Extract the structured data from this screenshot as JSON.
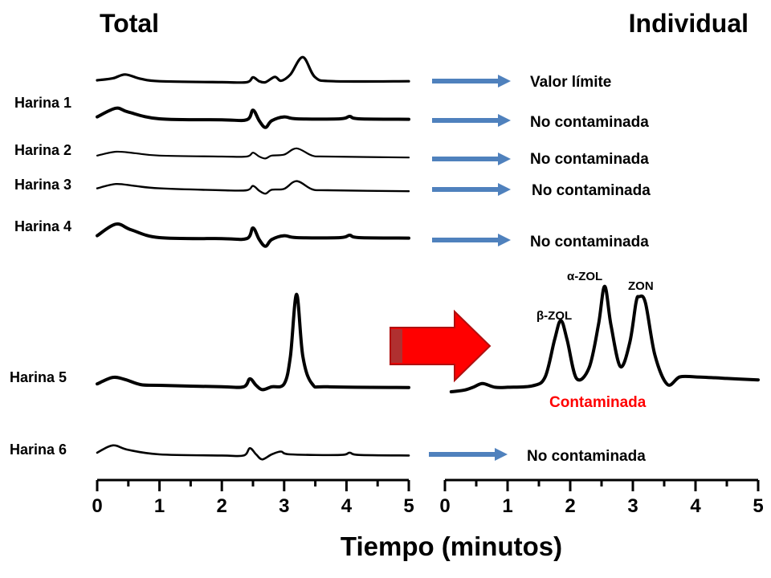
{
  "panels": {
    "left_title": "Total",
    "right_title": "Individual"
  },
  "x_axis": {
    "label": "Tiempo (minutos)",
    "ticks": [
      "0",
      "1",
      "2",
      "3",
      "4",
      "5"
    ]
  },
  "samples": [
    {
      "label": "",
      "result": "Valor límite"
    },
    {
      "label": "Harina 1",
      "result": "No contaminada"
    },
    {
      "label": "Harina 2",
      "result": "No contaminada"
    },
    {
      "label": "Harina 3",
      "result": "No contaminada"
    },
    {
      "label": "Harina 4",
      "result": "No contaminada"
    },
    {
      "label": "Harina 5",
      "result": "Contaminada"
    },
    {
      "label": "Harina 6",
      "result": "No contaminada"
    }
  ],
  "peaks": [
    "β-ZOL",
    "α-ZOL",
    "ZON"
  ],
  "colors": {
    "arrow": "#4f81bd",
    "big_arrow": "#ff0000",
    "contaminated_text": "#ff0000",
    "trace": "#000000"
  },
  "chart_data": [
    {
      "type": "line",
      "title": "Total",
      "xlabel": "Tiempo (minutos)",
      "xlim": [
        0,
        5
      ],
      "series": [
        {
          "name": "",
          "x": [
            0,
            0.25,
            0.45,
            0.7,
            1.0,
            2.0,
            2.4,
            2.5,
            2.6,
            2.7,
            2.85,
            2.95,
            3.1,
            3.3,
            3.5,
            3.8,
            5.0
          ],
          "values": [
            0.0,
            0.2,
            0.6,
            0.15,
            -0.1,
            -0.2,
            -0.2,
            0.3,
            -0.1,
            -0.2,
            0.35,
            -0.05,
            0.6,
            2.4,
            0.3,
            -0.1,
            -0.1
          ]
        },
        {
          "name": "Harina 1",
          "x": [
            0,
            0.3,
            0.5,
            1.0,
            2.0,
            2.4,
            2.5,
            2.6,
            2.7,
            2.8,
            3.0,
            3.2,
            3.9,
            4.05,
            4.2,
            5.0
          ],
          "values": [
            0.2,
            1.1,
            0.7,
            0.0,
            -0.1,
            -0.1,
            0.9,
            -0.2,
            -0.9,
            -0.2,
            0.2,
            0.0,
            0.0,
            0.25,
            0.0,
            -0.05
          ]
        },
        {
          "name": "Harina 2",
          "x": [
            0,
            0.3,
            0.6,
            1.0,
            2.0,
            2.4,
            2.5,
            2.6,
            2.7,
            2.8,
            3.0,
            3.2,
            3.45,
            3.7,
            5.0
          ],
          "values": [
            0.1,
            0.5,
            0.35,
            0.1,
            0.0,
            0.0,
            0.4,
            0.0,
            -0.2,
            0.1,
            0.2,
            0.85,
            0.1,
            0.0,
            -0.1
          ]
        },
        {
          "name": "Harina 3",
          "x": [
            0,
            0.3,
            0.6,
            1.0,
            2.0,
            2.4,
            2.5,
            2.6,
            2.7,
            2.8,
            3.0,
            3.2,
            3.45,
            3.7,
            5.0
          ],
          "values": [
            0.2,
            0.65,
            0.45,
            0.2,
            0.0,
            0.0,
            0.45,
            -0.05,
            -0.35,
            0.05,
            0.15,
            0.95,
            0.1,
            0.0,
            -0.1
          ]
        },
        {
          "name": "Harina 4",
          "x": [
            0,
            0.3,
            0.55,
            1.0,
            2.0,
            2.4,
            2.5,
            2.6,
            2.7,
            2.8,
            3.0,
            3.2,
            3.9,
            4.05,
            4.2,
            5.0
          ],
          "values": [
            0.2,
            1.4,
            0.8,
            0.0,
            -0.1,
            -0.1,
            1.0,
            -0.2,
            -0.9,
            -0.2,
            0.2,
            0.0,
            0.0,
            0.25,
            0.0,
            -0.05
          ]
        },
        {
          "name": "Harina 5",
          "x": [
            0,
            0.25,
            0.45,
            0.7,
            1.0,
            2.0,
            2.35,
            2.45,
            2.55,
            2.65,
            2.8,
            3.0,
            3.1,
            3.2,
            3.3,
            3.45,
            3.7,
            5.0
          ],
          "values": [
            0.1,
            0.55,
            0.4,
            0.05,
            0.0,
            -0.1,
            -0.1,
            0.45,
            0.0,
            -0.3,
            -0.1,
            0.1,
            2.0,
            6.3,
            2.0,
            0.1,
            -0.1,
            -0.15
          ]
        },
        {
          "name": "Harina 6",
          "x": [
            0,
            0.25,
            0.5,
            1.0,
            2.0,
            2.35,
            2.45,
            2.55,
            2.65,
            2.8,
            2.95,
            3.1,
            3.9,
            4.05,
            4.2,
            5.0
          ],
          "values": [
            0.15,
            0.8,
            0.4,
            0.0,
            -0.1,
            -0.1,
            0.55,
            0.0,
            -0.45,
            0.0,
            0.25,
            0.0,
            -0.05,
            0.15,
            -0.05,
            -0.1
          ]
        }
      ]
    },
    {
      "type": "line",
      "title": "Individual",
      "xlabel": "Tiempo (minutos)",
      "xlim": [
        0,
        5
      ],
      "series": [
        {
          "name": "",
          "x": [
            0.1,
            0.3,
            0.45,
            0.6,
            0.8,
            1.0,
            1.4,
            1.6,
            1.75,
            1.85,
            1.95,
            2.1,
            2.3,
            2.45,
            2.55,
            2.65,
            2.8,
            2.95,
            3.05,
            3.1,
            3.2,
            3.35,
            3.55,
            3.75,
            4.0,
            4.5,
            5.0
          ],
          "values": [
            0.0,
            0.1,
            0.3,
            0.55,
            0.3,
            0.3,
            0.4,
            1.0,
            3.5,
            4.8,
            3.5,
            0.9,
            1.6,
            4.5,
            7.1,
            4.5,
            1.7,
            3.3,
            6.0,
            6.4,
            6.0,
            2.5,
            0.5,
            1.0,
            1.0,
            0.9,
            0.8
          ]
        }
      ]
    }
  ]
}
